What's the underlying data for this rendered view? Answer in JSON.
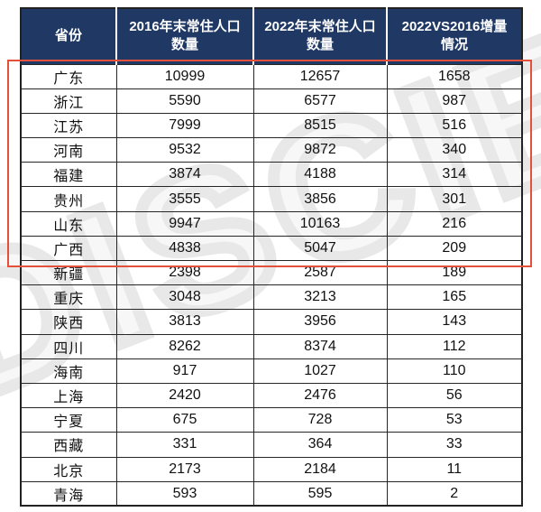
{
  "colors": {
    "header_bg": "#1f3864",
    "header_text": "#ffffff",
    "grid_line": "#262626",
    "highlight_border": "#e5503a",
    "watermark_gray": "#dadada"
  },
  "watermark": {
    "text": "DISCIEN"
  },
  "table": {
    "headers": [
      {
        "lines": [
          "省份"
        ]
      },
      {
        "lines": [
          "2016年末常住人口",
          "数量"
        ]
      },
      {
        "lines": [
          "2022年末常住人口",
          "数量"
        ]
      },
      {
        "lines": [
          "2022VS2016增量",
          "情况"
        ]
      }
    ],
    "rows": [
      [
        "广东",
        "10999",
        "12657",
        "1658"
      ],
      [
        "浙江",
        "5590",
        "6577",
        "987"
      ],
      [
        "江苏",
        "7999",
        "8515",
        "516"
      ],
      [
        "河南",
        "9532",
        "9872",
        "340"
      ],
      [
        "福建",
        "3874",
        "4188",
        "314"
      ],
      [
        "贵州",
        "3555",
        "3856",
        "301"
      ],
      [
        "山东",
        "9947",
        "10163",
        "216"
      ],
      [
        "广西",
        "4838",
        "5047",
        "209"
      ],
      [
        "新疆",
        "2398",
        "2587",
        "189"
      ],
      [
        "重庆",
        "3048",
        "3213",
        "165"
      ],
      [
        "陕西",
        "3813",
        "3956",
        "143"
      ],
      [
        "四川",
        "8262",
        "8374",
        "112"
      ],
      [
        "海南",
        "917",
        "1027",
        "110"
      ],
      [
        "上海",
        "2420",
        "2476",
        "56"
      ],
      [
        "宁夏",
        "675",
        "728",
        "53"
      ],
      [
        "西藏",
        "331",
        "364",
        "33"
      ],
      [
        "北京",
        "2173",
        "2184",
        "11"
      ],
      [
        "青海",
        "593",
        "595",
        "2"
      ]
    ],
    "highlighted_rows": [
      "广东",
      "浙江",
      "江苏",
      "河南",
      "福建",
      "贵州",
      "山东",
      "广西"
    ]
  },
  "chart_data": {
    "type": "table",
    "columns": [
      "省份",
      "2016年末常住人口数量",
      "2022年末常住人口数量",
      "2022VS2016增量情况"
    ],
    "rows": [
      [
        "广东",
        10999,
        12657,
        1658
      ],
      [
        "浙江",
        5590,
        6577,
        987
      ],
      [
        "江苏",
        7999,
        8515,
        516
      ],
      [
        "河南",
        9532,
        9872,
        340
      ],
      [
        "福建",
        3874,
        4188,
        314
      ],
      [
        "贵州",
        3555,
        3856,
        301
      ],
      [
        "山东",
        9947,
        10163,
        216
      ],
      [
        "广西",
        4838,
        5047,
        209
      ],
      [
        "新疆",
        2398,
        2587,
        189
      ],
      [
        "重庆",
        3048,
        3213,
        165
      ],
      [
        "陕西",
        3813,
        3956,
        143
      ],
      [
        "四川",
        8262,
        8374,
        112
      ],
      [
        "海南",
        917,
        1027,
        110
      ],
      [
        "上海",
        2420,
        2476,
        56
      ],
      [
        "宁夏",
        675,
        728,
        53
      ],
      [
        "西藏",
        331,
        364,
        33
      ],
      [
        "北京",
        2173,
        2184,
        11
      ],
      [
        "青海",
        593,
        595,
        2
      ]
    ],
    "annotation": "red rectangle drawn around the first 8 data rows"
  }
}
